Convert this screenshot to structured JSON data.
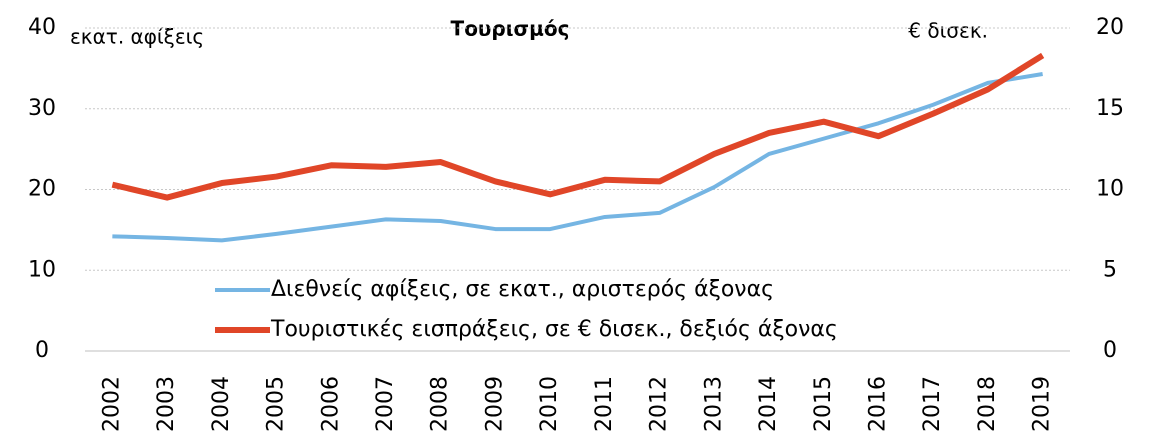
{
  "chart_data": {
    "type": "line",
    "title": "Τουρισμός",
    "y_label": "εκατ. αφίξεις",
    "y2_label": "€ δισεκ.",
    "categories": [
      "2002",
      "2003",
      "2004",
      "2005",
      "2006",
      "2007",
      "2008",
      "2009",
      "2010",
      "2011",
      "2012",
      "2013",
      "2014",
      "2015",
      "2016",
      "2017",
      "2018",
      "2019"
    ],
    "series": [
      {
        "name": "Διεθνείς αφίξεις, σε εκατ., αριστερός άξονας",
        "color": "#75b5e3",
        "axis": "y",
        "values": [
          14.2,
          14.0,
          13.7,
          14.5,
          15.4,
          16.3,
          16.1,
          15.1,
          15.1,
          16.6,
          17.1,
          20.3,
          24.4,
          26.3,
          28.2,
          30.5,
          33.2,
          34.3
        ]
      },
      {
        "name": "Τουριστικές εισπράξεις, σε € δισεκ., δεξιός άξονας",
        "color": "#e04628",
        "axis": "y2",
        "values": [
          10.3,
          9.5,
          10.4,
          10.8,
          11.5,
          11.4,
          11.7,
          10.5,
          9.7,
          10.6,
          10.5,
          12.2,
          13.5,
          14.2,
          13.3,
          14.7,
          16.2,
          18.3
        ]
      }
    ],
    "ylim": [
      0,
      40
    ],
    "yticks": [
      0,
      10,
      20,
      30,
      40
    ],
    "y2lim": [
      0,
      20
    ],
    "y2ticks": [
      0,
      5,
      10,
      15,
      20
    ],
    "grid": true,
    "legend": "lower center"
  }
}
